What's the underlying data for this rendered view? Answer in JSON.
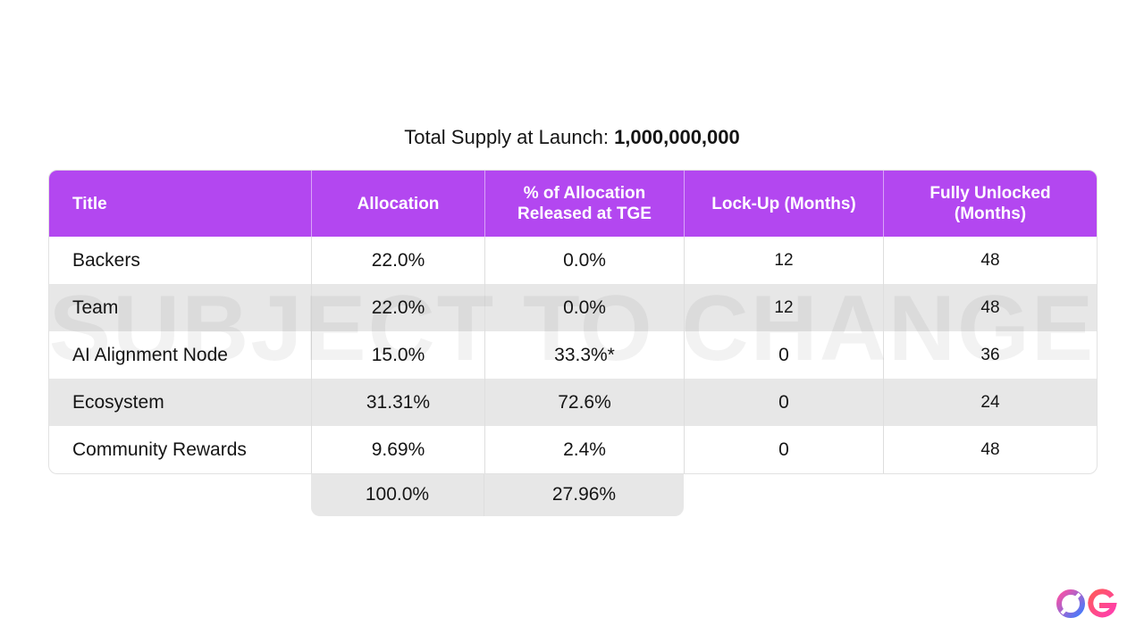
{
  "supply": {
    "label": "Total Supply at Launch:",
    "amount": "1,000,000,000"
  },
  "watermark": "SUBJECT TO CHANGE",
  "table": {
    "headers": {
      "title": "Title",
      "allocation": "Allocation",
      "released_line1": "% of Allocation",
      "released_line2": "Released at TGE",
      "lockup": "Lock-Up (Months)",
      "unlocked_line1": "Fully Unlocked",
      "unlocked_line2": "(Months)"
    },
    "rows": [
      {
        "title": "Backers",
        "allocation": "22.0%",
        "released": "0.0%",
        "lockup": "12",
        "unlocked": "48"
      },
      {
        "title": "Team",
        "allocation": "22.0%",
        "released": "0.0%",
        "lockup": "12",
        "unlocked": "48"
      },
      {
        "title": "AI Alignment Node",
        "allocation": "15.0%",
        "released": "33.3%*",
        "lockup": "0",
        "unlocked": "36"
      },
      {
        "title": "Ecosystem",
        "allocation": "31.31%",
        "released": "72.6%",
        "lockup": "0",
        "unlocked": "24"
      },
      {
        "title": "Community Rewards",
        "allocation": "9.69%",
        "released": "2.4%",
        "lockup": "0",
        "unlocked": "48"
      }
    ],
    "totals": {
      "allocation": "100.0%",
      "released": "27.96%"
    }
  },
  "colors": {
    "header_bg": "#b347f0",
    "shade_row": "#e7e7e7",
    "logo_gradient_start": "#ff4fa3",
    "logo_gradient_end": "#3d7cff"
  },
  "logo": {
    "icon": "og-logo-icon"
  }
}
